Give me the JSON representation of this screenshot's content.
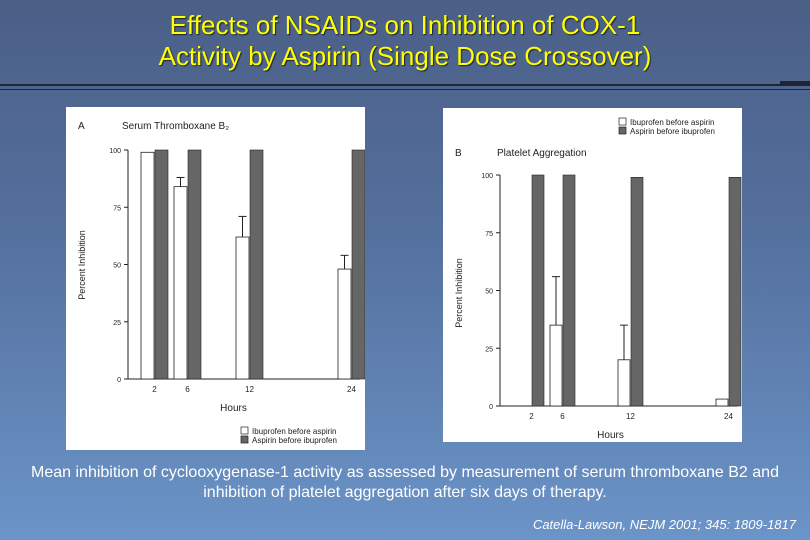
{
  "slide": {
    "title_line1": "Effects of NSAIDs on Inhibition of COX-1",
    "title_line2": "Activity by Aspirin (Single Dose Crossover)",
    "caption": "Mean inhibition of cyclooxygenase-1 activity as assessed by measurement of serum thromboxane B2 and inhibition of platelet aggregation after six days of therapy.",
    "citation": "Catella-Lawson, NEJM 2001; 345: 1809-1817"
  },
  "colors": {
    "title": "#ffff00",
    "background_top": "#4a5f86",
    "background_bottom": "#6b94c8",
    "aspirin_bar": "#666666",
    "ibuprofen_bar": "#ffffff"
  },
  "chart_data": [
    {
      "type": "bar",
      "panel_letter": "A",
      "title": "Serum Thromboxane B₂",
      "xlabel": "Hours",
      "ylabel": "Percent Inhibition",
      "categories": [
        "2",
        "6",
        "12",
        "24"
      ],
      "yticks": [
        "0",
        "25",
        "50",
        "75",
        "100"
      ],
      "ylim": [
        0,
        100
      ],
      "series": [
        {
          "name": "Ibuprofen before aspirin",
          "values": [
            99,
            84,
            62,
            48
          ],
          "error_plus": [
            0,
            4,
            9,
            6
          ],
          "color": "#ffffff"
        },
        {
          "name": "Aspirin before ibuprofen",
          "values": [
            100,
            100,
            100,
            100
          ],
          "error_plus": [
            0,
            0,
            0,
            0
          ],
          "color": "#666666"
        }
      ],
      "legend": "bottom-right",
      "grid": false
    },
    {
      "type": "bar",
      "panel_letter": "B",
      "title": "Platelet Aggregation",
      "xlabel": "Hours",
      "ylabel": "Percent Inhibition",
      "categories": [
        "2",
        "6",
        "12",
        "24"
      ],
      "yticks": [
        "0",
        "25",
        "50",
        "75",
        "100"
      ],
      "ylim": [
        0,
        100
      ],
      "series": [
        {
          "name": "Ibuprofen before aspirin",
          "values": [
            0,
            35,
            20,
            3
          ],
          "error_plus": [
            0,
            21,
            15,
            0
          ],
          "color": "#ffffff"
        },
        {
          "name": "Aspirin before ibuprofen",
          "values": [
            100,
            100,
            99,
            99
          ],
          "error_plus": [
            0,
            0,
            0,
            0
          ],
          "color": "#666666"
        }
      ],
      "legend": "top-right",
      "grid": false
    }
  ]
}
